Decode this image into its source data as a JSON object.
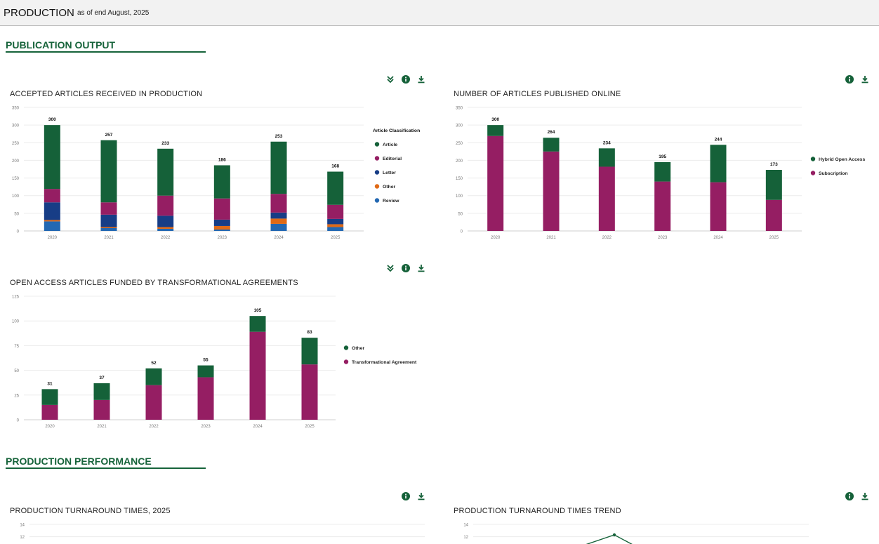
{
  "header": {
    "title": "PRODUCTION",
    "as_of": "as of end August, 2025"
  },
  "sections": {
    "output": "PUBLICATION OUTPUT",
    "performance": "PRODUCTION PERFORMANCE"
  },
  "colors": {
    "green": "#156139",
    "magenta": "#951e63",
    "navy": "#173d86",
    "orange": "#e06a16",
    "blue": "#2368b2",
    "dark_green": "#16633a"
  },
  "icons": [
    "expand-icon",
    "info-icon",
    "download-icon"
  ],
  "chart_data": [
    {
      "id": "accepted",
      "type": "bar",
      "stacked": true,
      "title": "ACCEPTED ARTICLES RECEIVED IN PRODUCTION",
      "categories": [
        "2020",
        "2021",
        "2022",
        "2023",
        "2024",
        "2025"
      ],
      "ylim": [
        0,
        350
      ],
      "yticks": [
        0,
        50,
        100,
        150,
        200,
        250,
        300,
        350
      ],
      "totals": [
        300,
        257,
        233,
        186,
        253,
        168
      ],
      "legend_title": "Article Classification",
      "legend_position": "right",
      "series": [
        {
          "name": "Review",
          "color": "#2368b2",
          "values": [
            27,
            8,
            6,
            4,
            20,
            11
          ]
        },
        {
          "name": "Other",
          "color": "#e06a16",
          "values": [
            4,
            3,
            5,
            10,
            15,
            8
          ]
        },
        {
          "name": "Letter",
          "color": "#173d86",
          "values": [
            50,
            35,
            32,
            18,
            17,
            15
          ]
        },
        {
          "name": "Editorial",
          "color": "#951e63",
          "values": [
            38,
            35,
            57,
            60,
            53,
            40
          ]
        },
        {
          "name": "Article",
          "color": "#156139",
          "values": [
            181,
            176,
            133,
            94,
            148,
            94
          ]
        }
      ],
      "legend_order": [
        "Article",
        "Editorial",
        "Letter",
        "Other",
        "Review"
      ],
      "grid": true
    },
    {
      "id": "published",
      "type": "bar",
      "stacked": true,
      "title": "NUMBER OF ARTICLES PUBLISHED ONLINE",
      "categories": [
        "2020",
        "2021",
        "2022",
        "2023",
        "2024",
        "2025"
      ],
      "ylim": [
        0,
        350
      ],
      "yticks": [
        0,
        50,
        100,
        150,
        200,
        250,
        300,
        350
      ],
      "totals": [
        300,
        264,
        234,
        195,
        244,
        173
      ],
      "legend_position": "right",
      "series": [
        {
          "name": "Subscription",
          "color": "#951e63",
          "values": [
            269,
            225,
            182,
            140,
            138,
            88
          ]
        },
        {
          "name": "Hybrid Open Access",
          "color": "#156139",
          "values": [
            31,
            39,
            52,
            55,
            106,
            85
          ]
        }
      ],
      "legend_order": [
        "Hybrid Open Access",
        "Subscription"
      ],
      "grid": true
    },
    {
      "id": "oa",
      "type": "bar",
      "stacked": true,
      "title": "OPEN ACCESS ARTICLES FUNDED BY TRANSFORMATIONAL AGREEMENTS",
      "categories": [
        "2020",
        "2021",
        "2022",
        "2023",
        "2024",
        "2025"
      ],
      "ylim": [
        0,
        125
      ],
      "yticks": [
        0,
        25,
        50,
        75,
        100,
        125
      ],
      "totals": [
        31,
        37,
        52,
        55,
        105,
        83
      ],
      "legend_position": "right",
      "series": [
        {
          "name": "Transformational Agreement",
          "color": "#951e63",
          "values": [
            15,
            20,
            35,
            43,
            89,
            56
          ]
        },
        {
          "name": "Other",
          "color": "#156139",
          "values": [
            16,
            17,
            17,
            12,
            16,
            27
          ]
        }
      ],
      "legend_order": [
        "Other",
        "Transformational Agreement"
      ],
      "grid": true
    },
    {
      "id": "turnaround",
      "type": "bar",
      "title": "PRODUCTION TURNAROUND TIMES, 2025",
      "ylim": [
        0,
        14
      ],
      "yticks_visible": [
        12,
        14
      ],
      "grid": true
    },
    {
      "id": "trend",
      "type": "line",
      "title": "PRODUCTION TURNAROUND TIMES TREND",
      "ylim": [
        0,
        14
      ],
      "yticks_visible": [
        12,
        14
      ],
      "grid": true
    }
  ]
}
